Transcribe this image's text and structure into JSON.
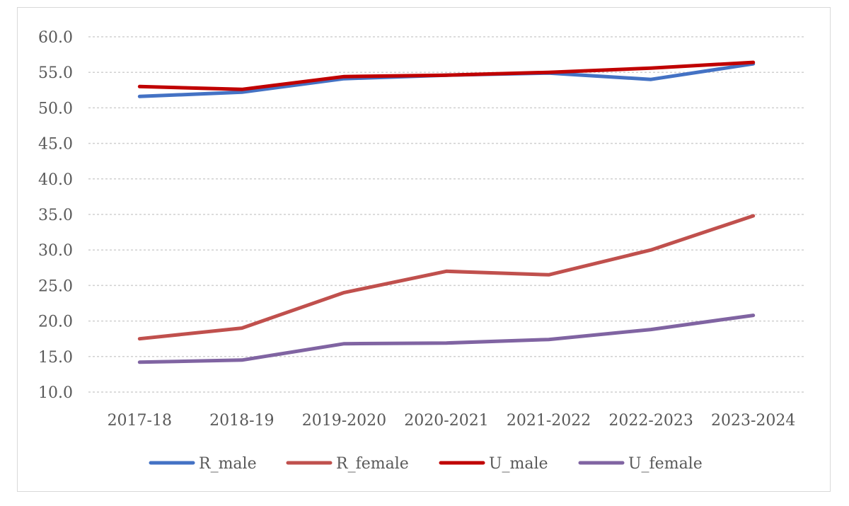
{
  "chart_data": {
    "type": "line",
    "categories": [
      "2017-18",
      "2018-19",
      "2019-2020",
      "2020-2021",
      "2021-2022",
      "2022-2023",
      "2023-2024"
    ],
    "series": [
      {
        "name": "R_male",
        "color": "#4472C4",
        "values": [
          51.6,
          52.2,
          54.1,
          54.6,
          54.9,
          54.0,
          56.2
        ]
      },
      {
        "name": "R_female",
        "color": "#C0504D",
        "values": [
          17.5,
          19.0,
          24.0,
          27.0,
          26.5,
          30.0,
          34.8
        ]
      },
      {
        "name": "U_male",
        "color": "#C00000",
        "values": [
          53.0,
          52.6,
          54.4,
          54.6,
          55.0,
          55.6,
          56.4
        ]
      },
      {
        "name": "U_female",
        "color": "#8064A2",
        "values": [
          14.2,
          14.5,
          16.8,
          16.9,
          17.4,
          18.8,
          20.8
        ]
      }
    ],
    "ylim": [
      10,
      60
    ],
    "yticks": [
      "10.0",
      "15.0",
      "20.0",
      "25.0",
      "30.0",
      "35.0",
      "40.0",
      "45.0",
      "50.0",
      "55.0",
      "60.0"
    ],
    "grid": true,
    "legend": "bottom"
  }
}
